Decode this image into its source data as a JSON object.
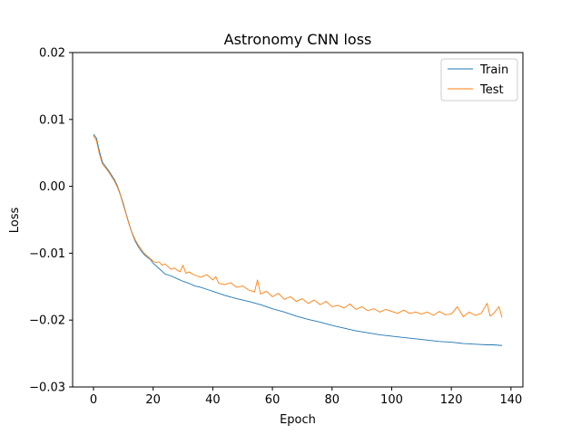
{
  "chart_data": {
    "type": "line",
    "title": "Astronomy CNN loss",
    "xlabel": "Epoch",
    "ylabel": "Loss",
    "xlim": [
      -7,
      144
    ],
    "ylim": [
      -0.03,
      0.02
    ],
    "xticks": [
      0,
      20,
      40,
      60,
      80,
      100,
      120,
      140
    ],
    "xtick_labels": [
      "0",
      "20",
      "40",
      "60",
      "80",
      "100",
      "120",
      "140"
    ],
    "yticks": [
      -0.03,
      -0.02,
      -0.01,
      0.0,
      0.01,
      0.02
    ],
    "ytick_labels": [
      "−0.03",
      "−0.02",
      "−0.01",
      "0.00",
      "0.01",
      "0.02"
    ],
    "grid": false,
    "legend_position": "top-right",
    "series": [
      {
        "name": "Train",
        "color": "#1f77b4",
        "x": [
          0,
          1,
          2,
          3,
          4,
          5,
          6,
          7,
          8,
          9,
          10,
          11,
          12,
          13,
          14,
          15,
          16,
          17,
          18,
          19,
          20,
          22,
          24,
          26,
          28,
          30,
          32,
          34,
          36,
          38,
          40,
          44,
          48,
          52,
          56,
          60,
          64,
          68,
          72,
          76,
          80,
          84,
          88,
          92,
          96,
          100,
          104,
          108,
          112,
          116,
          120,
          124,
          128,
          132,
          134,
          137
        ],
        "y": [
          0.0078,
          0.0072,
          0.0052,
          0.0036,
          0.003,
          0.0024,
          0.0017,
          0.001,
          0.0001,
          -0.0012,
          -0.0026,
          -0.0042,
          -0.0057,
          -0.0071,
          -0.0082,
          -0.009,
          -0.0097,
          -0.0102,
          -0.0106,
          -0.0109,
          -0.0115,
          -0.0123,
          -0.0131,
          -0.0134,
          -0.0138,
          -0.0142,
          -0.0145,
          -0.0149,
          -0.0151,
          -0.0154,
          -0.0157,
          -0.0163,
          -0.0168,
          -0.0172,
          -0.0177,
          -0.0183,
          -0.0188,
          -0.0194,
          -0.0199,
          -0.0203,
          -0.0208,
          -0.0212,
          -0.0216,
          -0.0219,
          -0.0222,
          -0.0224,
          -0.0226,
          -0.0228,
          -0.023,
          -0.0232,
          -0.0233,
          -0.0235,
          -0.0236,
          -0.0237,
          -0.0237,
          -0.0238
        ]
      },
      {
        "name": "Test",
        "color": "#ff7f0e",
        "x": [
          0,
          1,
          2,
          3,
          4,
          5,
          6,
          7,
          8,
          9,
          10,
          11,
          12,
          13,
          14,
          15,
          16,
          17,
          18,
          19,
          20,
          21,
          22,
          23,
          24,
          25,
          26,
          27,
          28,
          29,
          30,
          31,
          32,
          34,
          36,
          38,
          40,
          41,
          42,
          44,
          46,
          48,
          50,
          52,
          54,
          55,
          56,
          58,
          60,
          62,
          64,
          66,
          68,
          70,
          72,
          74,
          76,
          78,
          80,
          82,
          84,
          86,
          88,
          90,
          92,
          94,
          96,
          98,
          100,
          102,
          104,
          106,
          108,
          110,
          112,
          114,
          116,
          118,
          120,
          122,
          124,
          126,
          128,
          130,
          132,
          133,
          134,
          136,
          137
        ],
        "y": [
          0.0076,
          0.0068,
          0.0048,
          0.0033,
          0.0028,
          0.0022,
          0.0015,
          0.0008,
          -0.0001,
          -0.0013,
          -0.0028,
          -0.0043,
          -0.0058,
          -0.007,
          -0.008,
          -0.0088,
          -0.0094,
          -0.01,
          -0.0104,
          -0.0108,
          -0.0112,
          -0.0114,
          -0.0113,
          -0.0118,
          -0.0116,
          -0.012,
          -0.0124,
          -0.0122,
          -0.0125,
          -0.0128,
          -0.0118,
          -0.013,
          -0.0128,
          -0.0133,
          -0.0136,
          -0.0132,
          -0.014,
          -0.0135,
          -0.0145,
          -0.0147,
          -0.0144,
          -0.0151,
          -0.0149,
          -0.0155,
          -0.0158,
          -0.014,
          -0.0161,
          -0.0157,
          -0.0165,
          -0.016,
          -0.0169,
          -0.0165,
          -0.0172,
          -0.0168,
          -0.0175,
          -0.017,
          -0.0177,
          -0.0172,
          -0.018,
          -0.0178,
          -0.0182,
          -0.0176,
          -0.0184,
          -0.018,
          -0.0186,
          -0.0183,
          -0.0188,
          -0.0184,
          -0.0187,
          -0.019,
          -0.0185,
          -0.019,
          -0.0188,
          -0.0191,
          -0.0188,
          -0.0193,
          -0.0187,
          -0.0192,
          -0.0191,
          -0.018,
          -0.0195,
          -0.0188,
          -0.0193,
          -0.019,
          -0.0175,
          -0.0194,
          -0.0191,
          -0.018,
          -0.0196
        ]
      }
    ]
  }
}
